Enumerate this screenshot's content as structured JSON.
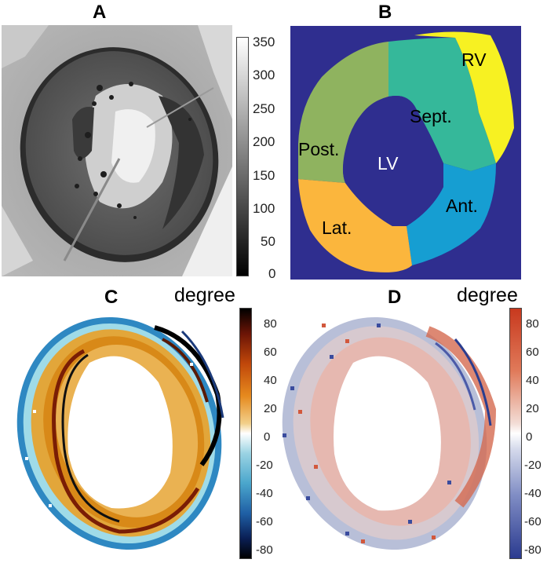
{
  "panels": {
    "a": {
      "letter": "A",
      "colorbar": {
        "ticks": [
          "350",
          "300",
          "250",
          "200",
          "150",
          "100",
          "50",
          "0"
        ]
      }
    },
    "b": {
      "letter": "B",
      "labels": {
        "rv": "RV",
        "sept": "Sept.",
        "post": "Post.",
        "lv": "LV",
        "ant": "Ant.",
        "lat": "Lat."
      },
      "colors": {
        "background": "#2f2e8f",
        "rv": "#f7f122",
        "sept": "#35b89a",
        "post": "#8fb35f",
        "ant": "#169ed2",
        "lat": "#fbb63d"
      }
    },
    "c": {
      "letter": "C",
      "unit": "degree",
      "colorbar": {
        "ticks": [
          "80",
          "60",
          "40",
          "20",
          "0",
          "-20",
          "-40",
          "-60",
          "-80"
        ]
      }
    },
    "d": {
      "letter": "D",
      "unit": "degree",
      "colorbar": {
        "ticks": [
          "80",
          "60",
          "40",
          "20",
          "0",
          "-20",
          "-40",
          "-60",
          "-80"
        ]
      }
    }
  }
}
